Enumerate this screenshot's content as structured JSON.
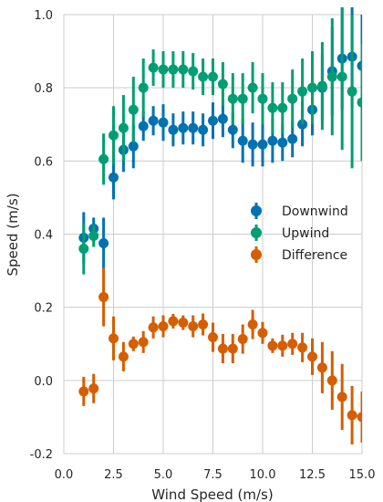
{
  "chart_data": {
    "type": "scatter",
    "title": "",
    "xlabel": "Wind Speed (m/s)",
    "ylabel": "Speed (m/s)",
    "xlim": [
      0.0,
      15.0
    ],
    "ylim": [
      -0.2,
      1.0
    ],
    "xticks": [
      "0.0",
      "2.5",
      "5.0",
      "7.5",
      "10.0",
      "12.5",
      "15.0"
    ],
    "xtick_values": [
      0,
      2.5,
      5,
      7.5,
      10,
      12.5,
      15
    ],
    "yticks": [
      "-0.2",
      "0.0",
      "0.2",
      "0.4",
      "0.6",
      "0.8",
      "1.0"
    ],
    "ytick_values": [
      -0.2,
      0,
      0.2,
      0.4,
      0.6,
      0.8,
      1.0
    ],
    "grid": true,
    "legend_position": "center-right",
    "x": [
      1.0,
      1.5,
      2.0,
      2.5,
      3.0,
      3.5,
      4.0,
      4.5,
      5.0,
      5.5,
      6.0,
      6.5,
      7.0,
      7.5,
      8.0,
      8.5,
      9.0,
      9.5,
      10.0,
      10.5,
      11.0,
      11.5,
      12.0,
      12.5,
      13.0,
      13.5,
      14.0,
      14.5,
      15.0
    ],
    "series": [
      {
        "name": "Downwind",
        "color": "#0072b2",
        "values": [
          0.39,
          0.415,
          0.375,
          0.555,
          0.63,
          0.64,
          0.695,
          0.71,
          0.705,
          0.685,
          0.69,
          0.69,
          0.685,
          0.71,
          0.715,
          0.685,
          0.655,
          0.645,
          0.645,
          0.655,
          0.65,
          0.66,
          0.7,
          0.74,
          0.8,
          0.845,
          0.88,
          0.885,
          0.86
        ],
        "errors": [
          0.07,
          0.03,
          0.07,
          0.06,
          0.06,
          0.06,
          0.04,
          0.04,
          0.05,
          0.045,
          0.045,
          0.045,
          0.045,
          0.05,
          0.05,
          0.05,
          0.06,
          0.06,
          0.06,
          0.06,
          0.05,
          0.05,
          0.06,
          0.07,
          0.09,
          0.12,
          0.14,
          0.14,
          0.14
        ]
      },
      {
        "name": "Upwind",
        "color": "#009e73",
        "values": [
          0.36,
          0.395,
          0.605,
          0.67,
          0.69,
          0.74,
          0.8,
          0.855,
          0.85,
          0.85,
          0.85,
          0.845,
          0.83,
          0.83,
          0.81,
          0.77,
          0.77,
          0.8,
          0.77,
          0.745,
          0.745,
          0.77,
          0.79,
          0.8,
          0.805,
          0.83,
          0.83,
          0.79,
          0.76
        ],
        "errors": [
          0.07,
          0.03,
          0.07,
          0.08,
          0.09,
          0.09,
          0.08,
          0.05,
          0.05,
          0.05,
          0.05,
          0.05,
          0.05,
          0.05,
          0.06,
          0.07,
          0.07,
          0.07,
          0.07,
          0.07,
          0.07,
          0.08,
          0.09,
          0.1,
          0.12,
          0.16,
          0.2,
          0.21,
          0.16
        ]
      },
      {
        "name": "Difference",
        "color": "#d55e00",
        "values": [
          -0.03,
          -0.022,
          0.228,
          0.115,
          0.065,
          0.1,
          0.105,
          0.145,
          0.148,
          0.162,
          0.158,
          0.148,
          0.153,
          0.118,
          0.087,
          0.087,
          0.113,
          0.153,
          0.13,
          0.095,
          0.095,
          0.1,
          0.09,
          0.065,
          0.035,
          0.0,
          -0.045,
          -0.095,
          -0.1
        ],
        "errors": [
          0.04,
          0.04,
          0.08,
          0.06,
          0.04,
          0.02,
          0.03,
          0.03,
          0.03,
          0.02,
          0.02,
          0.03,
          0.03,
          0.04,
          0.04,
          0.04,
          0.04,
          0.04,
          0.03,
          0.02,
          0.03,
          0.03,
          0.04,
          0.05,
          0.07,
          0.08,
          0.09,
          0.08,
          0.07
        ]
      }
    ]
  }
}
